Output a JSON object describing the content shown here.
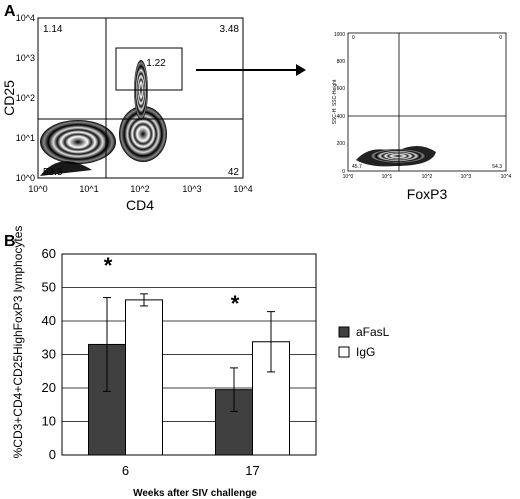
{
  "panelA": {
    "letter": "A",
    "plot1": {
      "xlabel": "CD4",
      "ylabel": "CD25",
      "xticks": [
        "10^0",
        "10^1",
        "10^2",
        "10^3",
        "10^4"
      ],
      "yticks": [
        "10^0",
        "10^1",
        "10^2",
        "10^3",
        "10^4"
      ],
      "quadrant_values": {
        "top_left": "1.14",
        "top_right": "3.48",
        "bottom_left": "53.3",
        "bottom_right": "42"
      },
      "gate_value": "1.22"
    },
    "plot2": {
      "xlabel": "FoxP3",
      "ylabel": "SSC-H: SSC-Height",
      "xticks": [
        "10^0",
        "10^1",
        "10^2",
        "10^3",
        "10^4"
      ],
      "yticks": [
        "0",
        "200",
        "400",
        "600",
        "800",
        "1000"
      ],
      "quadrant_values": {
        "top_left": "0",
        "top_right": "0",
        "bottom_left": "45.7",
        "bottom_right": "54.3"
      }
    }
  },
  "panelB": {
    "letter": "B"
  },
  "chart_data": {
    "type": "bar",
    "categories": [
      "6",
      "17"
    ],
    "series": [
      {
        "name": "aFasL",
        "values": [
          33,
          19.5
        ],
        "errors": [
          14,
          6.5
        ],
        "color": "#404040"
      },
      {
        "name": "IgG",
        "values": [
          46.3,
          33.8
        ],
        "errors": [
          1.8,
          9
        ],
        "color": "#ffffff"
      }
    ],
    "significance": [
      "*",
      "*"
    ],
    "xlabel": "Weeks after SIV challenge",
    "ylabel": "%CD3+CD4+CD25HighFoxP3 lymphocytes",
    "ylim": [
      0,
      60
    ],
    "yticks": [
      0,
      10,
      20,
      30,
      40,
      50,
      60
    ],
    "grid": true,
    "legend_position": "right"
  }
}
